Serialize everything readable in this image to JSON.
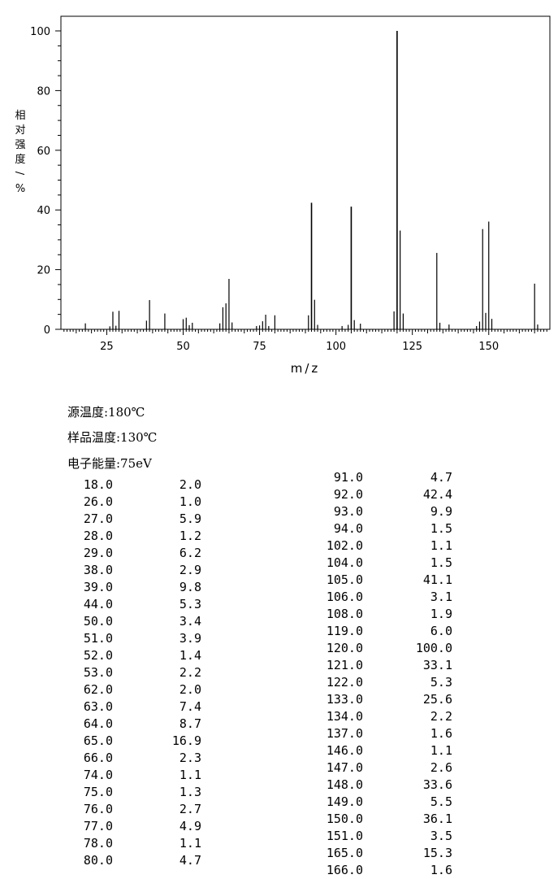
{
  "chart_data": {
    "type": "bar",
    "xlabel": "m/z",
    "ylabel": "相对强度/%",
    "xlim": [
      10,
      170
    ],
    "ylim": [
      0,
      100
    ],
    "x_ticks": [
      25,
      50,
      75,
      100,
      125,
      150
    ],
    "y_ticks": [
      0,
      20,
      40,
      60,
      80,
      100
    ],
    "grid": false,
    "x": [
      18,
      26,
      27,
      28,
      29,
      38,
      39,
      44,
      50,
      51,
      52,
      53,
      62,
      63,
      64,
      65,
      66,
      74,
      75,
      76,
      77,
      78,
      80,
      91,
      92,
      93,
      94,
      102,
      104,
      105,
      106,
      108,
      119,
      120,
      121,
      122,
      133,
      134,
      137,
      146,
      147,
      148,
      149,
      150,
      151,
      165,
      166
    ],
    "values": [
      2.0,
      1.0,
      5.9,
      1.2,
      6.2,
      2.9,
      9.8,
      5.3,
      3.4,
      3.9,
      1.4,
      2.2,
      2.0,
      7.4,
      8.7,
      16.9,
      2.3,
      1.1,
      1.3,
      2.7,
      4.9,
      1.1,
      4.7,
      4.7,
      42.4,
      9.9,
      1.5,
      1.1,
      1.5,
      41.1,
      3.1,
      1.9,
      6.0,
      100.0,
      33.1,
      5.3,
      25.6,
      2.2,
      1.6,
      1.1,
      2.6,
      33.6,
      5.5,
      36.1,
      3.5,
      15.3,
      1.6
    ]
  },
  "conditions": [
    "源温度:180℃",
    "样品温度:130℃",
    "电子能量:75eV"
  ],
  "peak_table": {
    "left": [
      [
        "18.0",
        "2.0"
      ],
      [
        "26.0",
        "1.0"
      ],
      [
        "27.0",
        "5.9"
      ],
      [
        "28.0",
        "1.2"
      ],
      [
        "29.0",
        "6.2"
      ],
      [
        "38.0",
        "2.9"
      ],
      [
        "39.0",
        "9.8"
      ],
      [
        "44.0",
        "5.3"
      ],
      [
        "50.0",
        "3.4"
      ],
      [
        "51.0",
        "3.9"
      ],
      [
        "52.0",
        "1.4"
      ],
      [
        "53.0",
        "2.2"
      ],
      [
        "62.0",
        "2.0"
      ],
      [
        "63.0",
        "7.4"
      ],
      [
        "64.0",
        "8.7"
      ],
      [
        "65.0",
        "16.9"
      ],
      [
        "66.0",
        "2.3"
      ],
      [
        "74.0",
        "1.1"
      ],
      [
        "75.0",
        "1.3"
      ],
      [
        "76.0",
        "2.7"
      ],
      [
        "77.0",
        "4.9"
      ],
      [
        "78.0",
        "1.1"
      ],
      [
        "80.0",
        "4.7"
      ]
    ],
    "right": [
      [
        "91.0",
        "4.7"
      ],
      [
        "92.0",
        "42.4"
      ],
      [
        "93.0",
        "9.9"
      ],
      [
        "94.0",
        "1.5"
      ],
      [
        "102.0",
        "1.1"
      ],
      [
        "104.0",
        "1.5"
      ],
      [
        "105.0",
        "41.1"
      ],
      [
        "106.0",
        "3.1"
      ],
      [
        "108.0",
        "1.9"
      ],
      [
        "119.0",
        "6.0"
      ],
      [
        "120.0",
        "100.0"
      ],
      [
        "121.0",
        "33.1"
      ],
      [
        "122.0",
        "5.3"
      ],
      [
        "133.0",
        "25.6"
      ],
      [
        "134.0",
        "2.2"
      ],
      [
        "137.0",
        "1.6"
      ],
      [
        "146.0",
        "1.1"
      ],
      [
        "147.0",
        "2.6"
      ],
      [
        "148.0",
        "33.6"
      ],
      [
        "149.0",
        "5.5"
      ],
      [
        "150.0",
        "36.1"
      ],
      [
        "151.0",
        "3.5"
      ],
      [
        "165.0",
        "15.3"
      ],
      [
        "166.0",
        "1.6"
      ]
    ]
  }
}
